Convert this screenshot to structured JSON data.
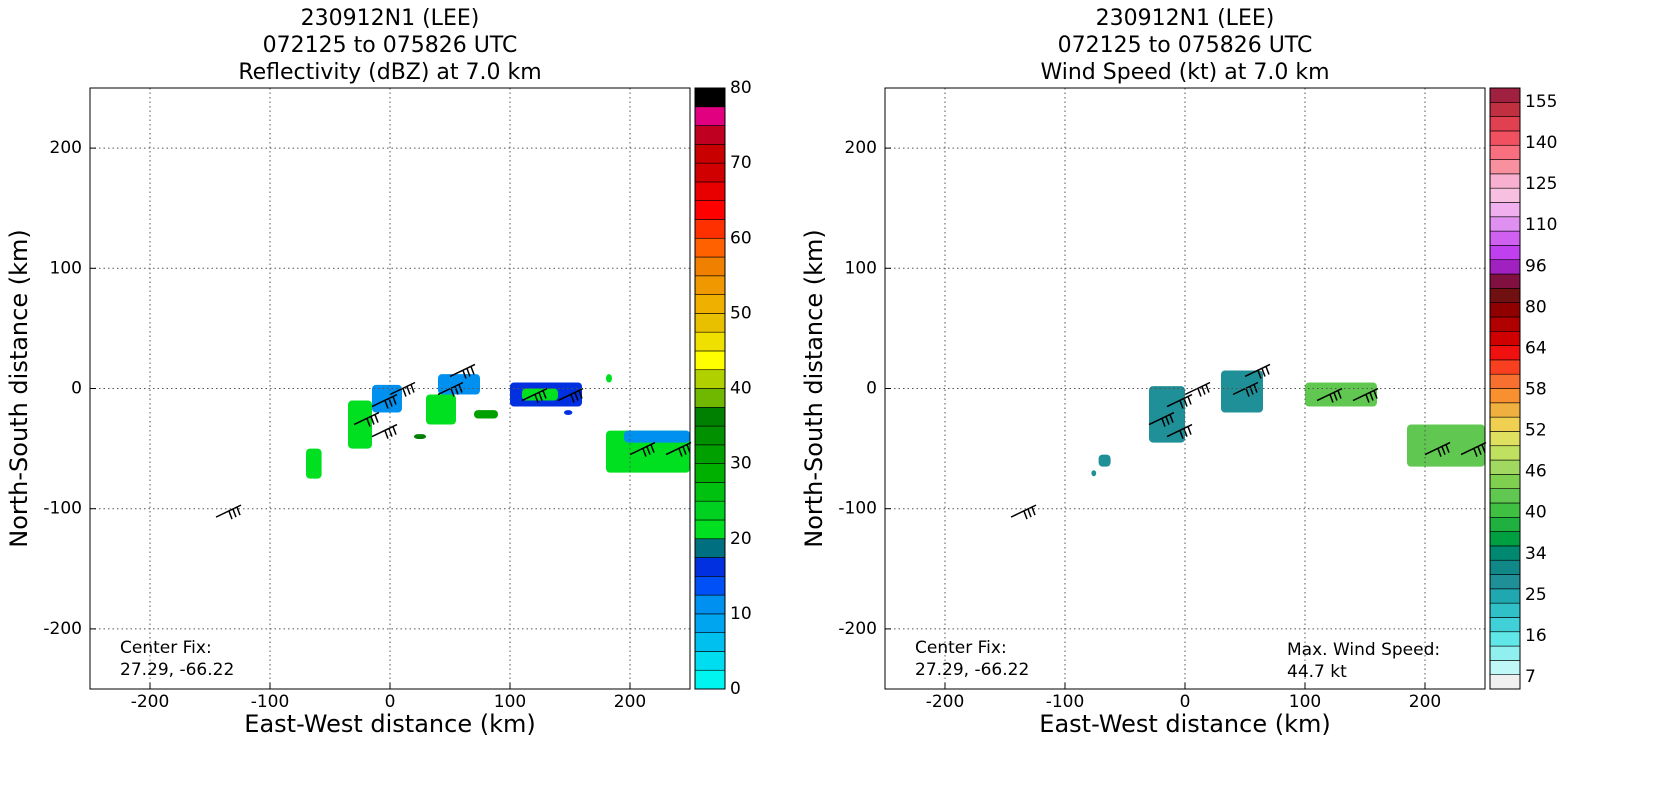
{
  "chart_data": [
    {
      "type": "heatmap",
      "title": [
        "230912N1 (LEE)",
        "072125 to 075826 UTC",
        "Reflectivity (dBZ) at 7.0 km"
      ],
      "xlabel": "East-West distance (km)",
      "ylabel": "North-South distance (km)",
      "xlim": [
        -250,
        250
      ],
      "ylim": [
        -250,
        250
      ],
      "xticks": [
        -200,
        -100,
        0,
        100,
        200
      ],
      "yticks": [
        -200,
        -100,
        0,
        100,
        200
      ],
      "grid": true,
      "colorbar": {
        "lim": [
          0,
          80
        ],
        "ticks": [
          0,
          10,
          20,
          30,
          40,
          50,
          60,
          70,
          80
        ],
        "colors": [
          "#00f5f0",
          "#00dcf0",
          "#00c0f0",
          "#00a5f0",
          "#0090f0",
          "#0050f8",
          "#0030e0",
          "#007080",
          "#00e020",
          "#00d020",
          "#00c010",
          "#00b000",
          "#00a000",
          "#009000",
          "#008000",
          "#70b800",
          "#b0d000",
          "#ffff00",
          "#f0e000",
          "#e8c000",
          "#f0b000",
          "#f09800",
          "#f08000",
          "#ff6000",
          "#ff3000",
          "#ff0000",
          "#e80000",
          "#d00000",
          "#c80000",
          "#c00020",
          "#e00080",
          "#000000"
        ]
      },
      "echoes": [
        [
          -35,
          -15,
          -50,
          -10,
          22
        ],
        [
          -70,
          -57,
          -75,
          -50,
          22
        ],
        [
          -15,
          10,
          -20,
          3,
          12
        ],
        [
          40,
          75,
          -5,
          12,
          12
        ],
        [
          30,
          55,
          -30,
          -5,
          22
        ],
        [
          20,
          30,
          -42,
          -38,
          36
        ],
        [
          70,
          90,
          -25,
          -18,
          30
        ],
        [
          100,
          160,
          -15,
          5,
          15
        ],
        [
          110,
          140,
          -10,
          0,
          22
        ],
        [
          180,
          250,
          -70,
          -35,
          22
        ],
        [
          195,
          250,
          -45,
          -35,
          12
        ],
        [
          180,
          185,
          5,
          12,
          22
        ],
        [
          145,
          152,
          -22,
          -18,
          15
        ]
      ],
      "wind_barbs": [
        [
          -145,
          -107
        ],
        [
          -15,
          -40
        ],
        [
          -30,
          -30
        ],
        [
          -15,
          -15
        ],
        [
          0,
          -5
        ],
        [
          40,
          -5
        ],
        [
          50,
          10
        ],
        [
          110,
          -10
        ],
        [
          140,
          -10
        ],
        [
          200,
          -55
        ],
        [
          230,
          -55
        ]
      ],
      "annotations": [
        "Center Fix:",
        "27.29, -66.22"
      ]
    },
    {
      "type": "heatmap",
      "title": [
        "230912N1 (LEE)",
        "072125 to 075826 UTC",
        "Wind Speed (kt) at 7.0 km"
      ],
      "xlabel": "East-West distance (km)",
      "ylabel": "North-South distance (km)",
      "xlim": [
        -250,
        250
      ],
      "ylim": [
        -250,
        250
      ],
      "xticks": [
        -200,
        -100,
        0,
        100,
        200
      ],
      "yticks": [
        -200,
        -100,
        0,
        100,
        200
      ],
      "grid": true,
      "colorbar": {
        "ticks": [
          7,
          16,
          25,
          34,
          40,
          46,
          52,
          58,
          64,
          80,
          96,
          110,
          125,
          140,
          155
        ],
        "colors": [
          "#f0f0f0",
          "#c0f8f8",
          "#90f0f0",
          "#60e8e8",
          "#40d0d8",
          "#30c0c8",
          "#20a8b0",
          "#209098",
          "#108888",
          "#008870",
          "#00a040",
          "#20b040",
          "#40c040",
          "#60c850",
          "#80d050",
          "#a0d860",
          "#c0e060",
          "#e0e060",
          "#f0d050",
          "#f0b040",
          "#f89030",
          "#f87030",
          "#f84020",
          "#f01010",
          "#d00000",
          "#b00000",
          "#900000",
          "#701010",
          "#801040",
          "#a020c0",
          "#c040f0",
          "#d060f0",
          "#e090f0",
          "#f0b0f0",
          "#f8c0e0",
          "#f8b0d0",
          "#f890a0",
          "#f87080",
          "#f05060",
          "#e04050",
          "#c03040",
          "#a02040"
        ]
      },
      "echoes": [
        [
          -30,
          0,
          -45,
          2,
          28
        ],
        [
          30,
          65,
          -20,
          15,
          30
        ],
        [
          100,
          160,
          -15,
          5,
          40
        ],
        [
          185,
          250,
          -65,
          -30,
          42
        ],
        [
          -72,
          -62,
          -65,
          -55,
          28
        ],
        [
          -78,
          -74,
          -73,
          -68,
          28
        ]
      ],
      "wind_barbs": [
        [
          -145,
          -107
        ],
        [
          -15,
          -40
        ],
        [
          -30,
          -30
        ],
        [
          -15,
          -15
        ],
        [
          0,
          -5
        ],
        [
          40,
          -5
        ],
        [
          50,
          10
        ],
        [
          110,
          -10
        ],
        [
          140,
          -10
        ],
        [
          200,
          -55
        ],
        [
          230,
          -55
        ]
      ],
      "annotations": [
        "Center Fix:",
        "27.29, -66.22",
        "Max. Wind Speed:",
        "44.7 kt"
      ]
    }
  ]
}
